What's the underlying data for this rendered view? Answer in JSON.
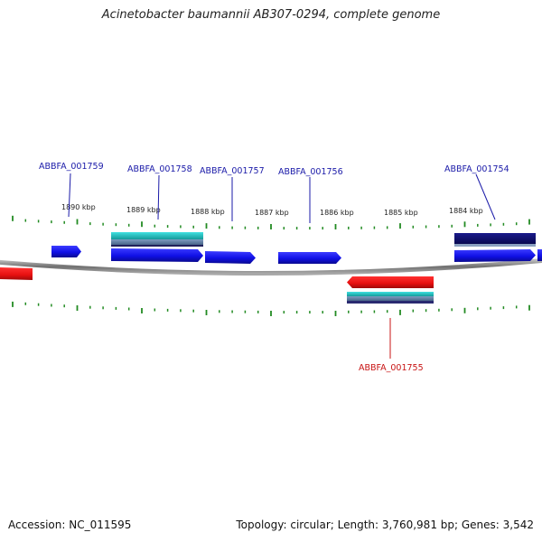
{
  "title": "Acinetobacter baumannii AB307-0294, complete genome",
  "footer": {
    "accession": "Accession: NC_011595",
    "summary": "Topology: circular; Length: 3,760,981 bp; Genes: 3,542"
  },
  "colors": {
    "forward_gene": "#1414f0",
    "forward_gene_dark": "#0a0a78",
    "reverse_gene": "#f01414",
    "cds_cyan": "#20c8c8",
    "cds_slate": "#5a7aa0",
    "cds_dark": "#202060",
    "backbone": "#8a8a8a",
    "tick": "#228b22",
    "forward_label": "#1a1aa8",
    "reverse_label": "#c81414"
  },
  "scale_labels": [
    "1890 kbp",
    "1889 kbp",
    "1888 kbp",
    "1887 kbp",
    "1886 kbp",
    "1885 kbp",
    "1884 kbp"
  ],
  "gene_labels": {
    "forward": [
      "ABBFA_001759",
      "ABBFA_001758",
      "ABBFA_001757",
      "ABBFA_001756",
      "ABBFA_001754"
    ],
    "reverse": [
      "ABBFA_001755"
    ]
  }
}
